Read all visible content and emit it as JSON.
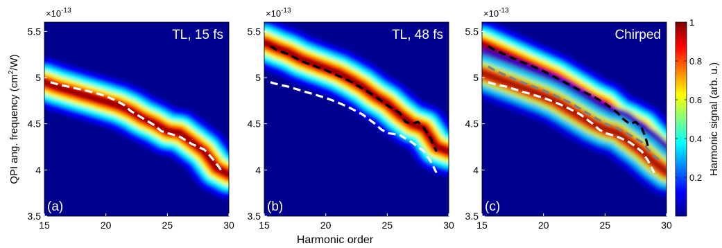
{
  "figure": {
    "xlabel": "Harmonic order",
    "ylabel_prefix": "QPI ang. frequency (cm",
    "ylabel_sup": "2",
    "ylabel_suffix": "/W)",
    "exponent_base": "×10",
    "exponent_power": "-13",
    "colorbar_label": "Harmonic signal (arb. u.)",
    "colorbar_ticks": [
      "0.2",
      "0.4",
      "0.6",
      "0.8",
      "1"
    ],
    "colorbar_tick_values": [
      0.2,
      0.4,
      0.6,
      0.8,
      1.0
    ],
    "colormap": "jet",
    "colors": {
      "jet_dark_blue": "#00008f",
      "jet_blue": "#0000ff",
      "jet_cyan": "#00ffff",
      "jet_yellow": "#ffff00",
      "jet_red": "#ff0000",
      "jet_dark_red": "#800000",
      "dash_white": "#ffffff",
      "dash_black": "#000000",
      "dash_gray": "#808080"
    }
  },
  "chart_data": [
    {
      "type": "heatmap",
      "panel_label": "(a)",
      "title": "TL, 15 fs",
      "xlim": [
        15,
        30
      ],
      "ylim": [
        3.5,
        5.6
      ],
      "xticks": [
        "15",
        "20",
        "25",
        "30"
      ],
      "yticks": [
        "3.5",
        "4",
        "4.5",
        "5",
        "5.5"
      ],
      "ridges": [
        {
          "x": [
            15,
            16,
            17,
            18,
            19,
            20,
            21,
            22,
            23,
            24,
            25,
            26,
            27,
            28,
            29,
            30
          ],
          "y": [
            4.95,
            4.9,
            4.86,
            4.82,
            4.78,
            4.74,
            4.7,
            4.64,
            4.56,
            4.5,
            4.42,
            4.4,
            4.3,
            4.2,
            4.02,
            3.95
          ]
        }
      ],
      "lines": [
        {
          "style": "white-dashed",
          "x": [
            15.5,
            16,
            17,
            18,
            19,
            20,
            21,
            21.5,
            22,
            23,
            24,
            24.5,
            25,
            26,
            27,
            27.5,
            28,
            28.3,
            28.8,
            29.2,
            29.5
          ],
          "y": [
            4.95,
            4.93,
            4.9,
            4.87,
            4.84,
            4.8,
            4.74,
            4.7,
            4.64,
            4.56,
            4.48,
            4.42,
            4.4,
            4.36,
            4.28,
            4.25,
            4.22,
            4.18,
            4.1,
            4.03,
            3.97
          ]
        }
      ]
    },
    {
      "type": "heatmap",
      "panel_label": "(b)",
      "title": "TL, 48 fs",
      "xlim": [
        15,
        30
      ],
      "ylim": [
        3.5,
        5.6
      ],
      "xticks": [
        "15",
        "20",
        "25",
        "30"
      ],
      "yticks": [
        "3.5",
        "4",
        "4.5",
        "5",
        "5.5"
      ],
      "ridges": [
        {
          "x": [
            15,
            16,
            17,
            18,
            19,
            20,
            21,
            22,
            23,
            24,
            25,
            26,
            27,
            28,
            29,
            30
          ],
          "y": [
            5.38,
            5.32,
            5.27,
            5.2,
            5.15,
            5.1,
            5.05,
            4.98,
            4.9,
            4.8,
            4.72,
            4.6,
            4.5,
            4.45,
            4.25,
            4.2
          ]
        }
      ],
      "lines": [
        {
          "style": "black-dashed",
          "x": [
            15.5,
            16,
            17,
            18,
            19,
            20,
            21,
            22,
            23,
            24,
            25,
            26,
            26.5,
            27,
            27.5,
            28,
            28.5,
            29
          ],
          "y": [
            5.34,
            5.3,
            5.25,
            5.18,
            5.13,
            5.08,
            5.02,
            4.96,
            4.88,
            4.8,
            4.7,
            4.62,
            4.52,
            4.5,
            4.52,
            4.45,
            4.35,
            4.2
          ]
        },
        {
          "style": "white-dashed",
          "x": [
            15.5,
            16,
            17,
            18,
            19,
            20,
            21,
            22,
            23,
            24,
            24.5,
            25,
            26,
            27,
            27.5,
            28,
            28.5,
            29
          ],
          "y": [
            4.95,
            4.93,
            4.9,
            4.86,
            4.82,
            4.78,
            4.73,
            4.67,
            4.6,
            4.5,
            4.44,
            4.4,
            4.38,
            4.3,
            4.25,
            4.2,
            4.1,
            3.97
          ]
        }
      ]
    },
    {
      "type": "heatmap",
      "panel_label": "(c)",
      "title": "Chirped",
      "xlim": [
        15,
        30
      ],
      "ylim": [
        3.5,
        5.6
      ],
      "xticks": [
        "15",
        "20",
        "25",
        "30"
      ],
      "yticks": [
        "3.5",
        "4",
        "4.5",
        "5",
        "5.5"
      ],
      "ridges": [
        {
          "x": [
            15,
            16,
            17,
            18,
            19,
            20,
            21,
            22,
            23,
            24,
            25,
            26,
            27,
            28,
            29,
            30
          ],
          "y": [
            5.36,
            5.3,
            5.24,
            5.18,
            5.12,
            5.06,
            5.0,
            4.92,
            4.84,
            4.76,
            4.7,
            4.58,
            4.52,
            4.45,
            4.3,
            4.2
          ]
        },
        {
          "x": [
            15,
            16,
            17,
            18,
            19,
            20,
            21,
            22,
            23,
            24,
            25,
            26,
            27,
            28,
            29,
            30
          ],
          "y": [
            5.05,
            5.0,
            4.95,
            4.9,
            4.85,
            4.8,
            4.74,
            4.66,
            4.58,
            4.5,
            4.44,
            4.4,
            4.3,
            4.2,
            4.08,
            3.98
          ]
        }
      ],
      "lines": [
        {
          "style": "black-dashed",
          "x": [
            15.5,
            16,
            17,
            18,
            19,
            20,
            21,
            22,
            23,
            24,
            25,
            26,
            26.5,
            27,
            27.5,
            28,
            28.3,
            28.6
          ],
          "y": [
            5.34,
            5.3,
            5.24,
            5.18,
            5.13,
            5.07,
            5.0,
            4.93,
            4.86,
            4.8,
            4.72,
            4.62,
            4.55,
            4.5,
            4.52,
            4.45,
            4.35,
            4.2
          ]
        },
        {
          "style": "gray-dashed",
          "x": [
            15.5,
            16,
            17,
            18,
            19,
            20,
            21,
            22,
            23,
            24,
            25,
            26,
            27,
            28,
            28.5,
            29,
            29.5
          ],
          "y": [
            5.12,
            5.08,
            5.02,
            4.96,
            4.91,
            4.86,
            4.8,
            4.74,
            4.66,
            4.58,
            4.5,
            4.45,
            4.38,
            4.3,
            4.22,
            4.15,
            4.1
          ]
        },
        {
          "style": "white-dashed",
          "x": [
            15.5,
            16,
            17,
            18,
            19,
            20,
            21,
            22,
            23,
            24,
            24.5,
            25,
            26,
            27,
            27.5,
            28,
            28.5,
            29
          ],
          "y": [
            4.95,
            4.93,
            4.9,
            4.86,
            4.82,
            4.78,
            4.73,
            4.67,
            4.6,
            4.5,
            4.44,
            4.4,
            4.36,
            4.3,
            4.25,
            4.2,
            4.1,
            3.97
          ]
        }
      ]
    }
  ]
}
